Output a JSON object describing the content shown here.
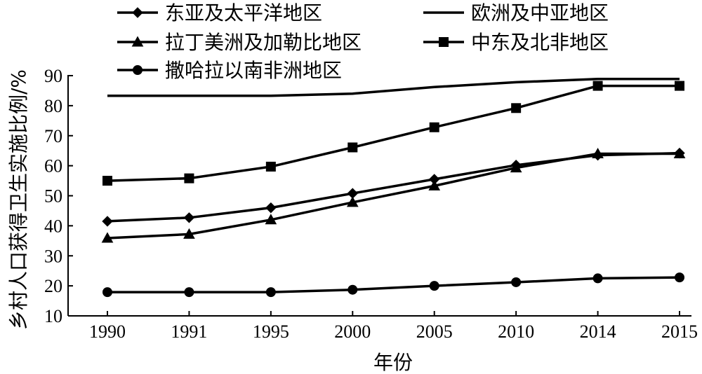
{
  "chart_data": {
    "type": "line",
    "title": "",
    "xlabel": "年份",
    "ylabel": "乡村人口获得卫生实施比例/%",
    "categories": [
      "1990",
      "1991",
      "1995",
      "2000",
      "2005",
      "2010",
      "2014",
      "2015"
    ],
    "ylim": [
      10,
      90
    ],
    "yticks": [
      10,
      20,
      30,
      40,
      50,
      60,
      70,
      80,
      90
    ],
    "grid": false,
    "legend_position": "top",
    "series": [
      {
        "name": "东亚及太平洋地区",
        "marker": "diamond",
        "values": [
          41.5,
          42.7,
          46.0,
          50.8,
          55.5,
          60.2,
          63.5,
          64.2
        ]
      },
      {
        "name": "欧洲及中亚地区",
        "marker": "none",
        "values": [
          83.3,
          83.3,
          83.3,
          84.0,
          86.2,
          87.8,
          88.9,
          88.9
        ]
      },
      {
        "name": "拉丁美洲及加勒比地区",
        "marker": "triangle",
        "values": [
          35.9,
          37.2,
          42.0,
          47.8,
          53.3,
          59.3,
          64.0,
          64.0
        ]
      },
      {
        "name": "中东及北非地区",
        "marker": "square",
        "values": [
          55.0,
          55.8,
          59.7,
          66.1,
          72.8,
          79.2,
          86.6,
          86.6
        ]
      },
      {
        "name": "撒哈拉以南非洲地区",
        "marker": "circle",
        "values": [
          17.9,
          17.9,
          17.9,
          18.7,
          20.0,
          21.2,
          22.5,
          22.8
        ]
      }
    ]
  }
}
